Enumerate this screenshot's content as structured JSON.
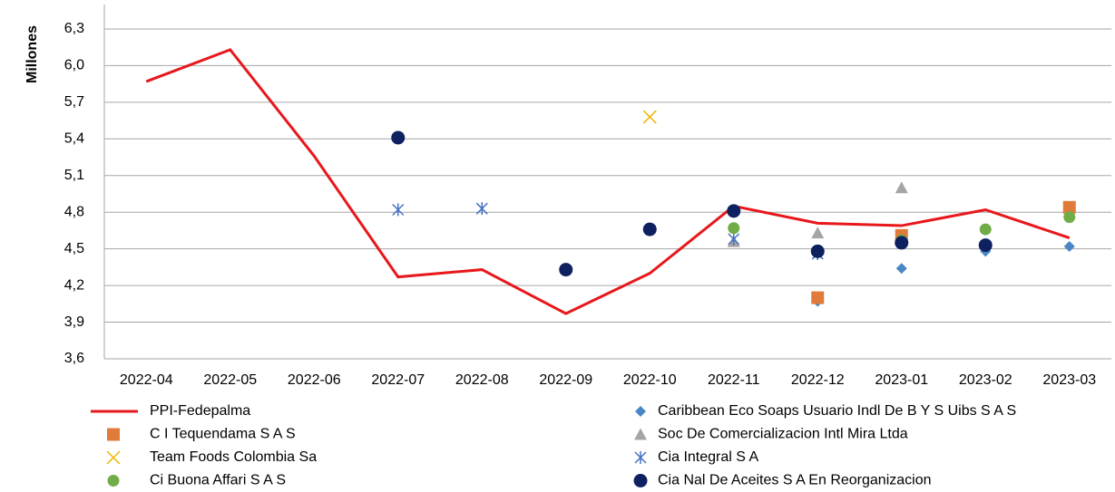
{
  "chart_data": {
    "type": "line",
    "y_label": "Millones",
    "categories": [
      "2022-04",
      "2022-05",
      "2022-06",
      "2022-07",
      "2022-08",
      "2022-09",
      "2022-10",
      "2022-11",
      "2022-12",
      "2023-01",
      "2023-02",
      "2023-03"
    ],
    "ylim": [
      3.6,
      6.5
    ],
    "yticks": [
      {
        "value": 3.6,
        "label": "3,6"
      },
      {
        "value": 3.9,
        "label": "3,9"
      },
      {
        "value": 4.2,
        "label": "4,2"
      },
      {
        "value": 4.5,
        "label": "4,5"
      },
      {
        "value": 4.8,
        "label": "4,8"
      },
      {
        "value": 5.1,
        "label": "5,1"
      },
      {
        "value": 5.4,
        "label": "5,4"
      },
      {
        "value": 5.7,
        "label": "5,7"
      },
      {
        "value": 6.0,
        "label": "6,0"
      },
      {
        "value": 6.3,
        "label": "6,3"
      }
    ],
    "grid": true,
    "legend": "bottom",
    "series": [
      {
        "name": "PPI-Fedepalma",
        "color": "#e8171b",
        "marker": "line",
        "values": [
          5.87,
          6.13,
          5.26,
          4.27,
          4.33,
          3.97,
          4.3,
          4.85,
          4.71,
          4.69,
          4.82,
          4.59
        ]
      },
      {
        "name": "Caribbean Eco Soaps Usuario Indl De B Y S Uibs S A S",
        "color": "#4a86c5",
        "marker": "diamond",
        "values": [
          null,
          null,
          null,
          null,
          null,
          null,
          null,
          4.67,
          4.07,
          4.34,
          4.48,
          4.52
        ]
      },
      {
        "name": "C I Tequendama S A S",
        "color": "#e07b39",
        "marker": "square",
        "values": [
          null,
          null,
          null,
          null,
          null,
          null,
          null,
          null,
          4.1,
          4.61,
          null,
          4.84
        ]
      },
      {
        "name": "Soc De Comercializacion Intl Mira Ltda",
        "color": "#a5a5a5",
        "marker": "triangle",
        "values": [
          null,
          null,
          null,
          null,
          null,
          null,
          null,
          4.56,
          4.63,
          5.0,
          null,
          null
        ]
      },
      {
        "name": "Team Foods Colombia Sa",
        "color": "#f0b400",
        "marker": "x",
        "values": [
          null,
          null,
          null,
          null,
          null,
          null,
          5.58,
          null,
          null,
          null,
          null,
          null
        ]
      },
      {
        "name": "Cia Integral S A",
        "color": "#4472c4",
        "marker": "asterisk",
        "values": [
          null,
          null,
          null,
          4.82,
          4.83,
          null,
          null,
          4.58,
          4.46,
          null,
          null,
          null
        ]
      },
      {
        "name": "Ci Buona Affari S A S",
        "color": "#70ad47",
        "marker": "circle",
        "values": [
          null,
          null,
          null,
          null,
          null,
          null,
          null,
          4.67,
          null,
          4.57,
          4.66,
          4.76
        ]
      },
      {
        "name": "Cia Nal De Aceites S A En Reorganizacion",
        "color": "#0d2060",
        "marker": "bigcircle",
        "values": [
          null,
          null,
          null,
          5.41,
          null,
          4.33,
          4.66,
          4.81,
          4.48,
          4.55,
          4.53,
          null
        ]
      }
    ]
  }
}
